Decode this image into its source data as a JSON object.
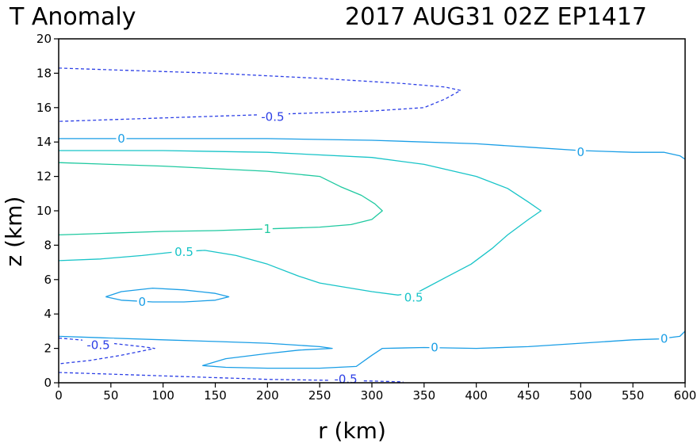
{
  "chart_data": {
    "type": "contour",
    "title_left": "T Anomaly",
    "title_right": "2017 AUG31 02Z   EP1417",
    "xlabel": "r (km)",
    "ylabel": "z (km)",
    "xlim": [
      0,
      600
    ],
    "ylim": [
      0,
      20
    ],
    "xticks": [
      0,
      50,
      100,
      150,
      200,
      250,
      300,
      350,
      400,
      450,
      500,
      550,
      600
    ],
    "yticks": [
      0,
      2,
      4,
      6,
      8,
      10,
      12,
      14,
      16,
      18,
      20
    ],
    "colors": {
      "neg": "#2c3fe6",
      "zero": "#1a9ee6",
      "half": "#18c4c8",
      "one": "#1fc9a0",
      "axis": "#000000"
    },
    "contours": [
      {
        "level": -0.5,
        "color": "neg",
        "dashed": true,
        "points": [
          [
            0,
            18.3
          ],
          [
            50,
            18.2
          ],
          [
            150,
            18.0
          ],
          [
            250,
            17.7
          ],
          [
            330,
            17.4
          ],
          [
            370,
            17.2
          ],
          [
            385,
            17.0
          ],
          [
            370,
            16.5
          ],
          [
            350,
            16.0
          ],
          [
            300,
            15.8
          ],
          [
            200,
            15.6
          ],
          [
            100,
            15.4
          ],
          [
            0,
            15.2
          ]
        ]
      },
      {
        "level": -0.5,
        "color": "neg",
        "dashed": true,
        "points": [
          [
            0,
            2.6
          ],
          [
            20,
            2.5
          ],
          [
            50,
            2.3
          ],
          [
            80,
            2.1
          ],
          [
            92,
            2.0
          ],
          [
            80,
            1.85
          ],
          [
            60,
            1.6
          ],
          [
            30,
            1.3
          ],
          [
            0,
            1.1
          ]
        ]
      },
      {
        "level": -0.5,
        "color": "neg",
        "dashed": true,
        "points": [
          [
            0,
            0.6
          ],
          [
            50,
            0.5
          ],
          [
            100,
            0.4
          ],
          [
            150,
            0.3
          ],
          [
            200,
            0.2
          ],
          [
            250,
            0.15
          ],
          [
            300,
            0.1
          ],
          [
            330,
            0.05
          ]
        ]
      },
      {
        "level": 0,
        "color": "zero",
        "dashed": false,
        "points": [
          [
            0,
            14.2
          ],
          [
            100,
            14.2
          ],
          [
            200,
            14.2
          ],
          [
            300,
            14.1
          ],
          [
            400,
            13.9
          ],
          [
            450,
            13.7
          ],
          [
            500,
            13.5
          ],
          [
            550,
            13.4
          ],
          [
            580,
            13.4
          ],
          [
            595,
            13.2
          ],
          [
            600,
            13.0
          ]
        ]
      },
      {
        "level": 0,
        "color": "zero",
        "dashed": false,
        "points": [
          [
            45,
            5.0
          ],
          [
            60,
            5.3
          ],
          [
            90,
            5.5
          ],
          [
            120,
            5.4
          ],
          [
            150,
            5.2
          ],
          [
            163,
            5.0
          ],
          [
            150,
            4.8
          ],
          [
            120,
            4.7
          ],
          [
            90,
            4.7
          ],
          [
            60,
            4.8
          ],
          [
            45,
            5.0
          ]
        ]
      },
      {
        "level": 0,
        "color": "zero",
        "dashed": false,
        "points": [
          [
            0,
            2.7
          ],
          [
            50,
            2.6
          ],
          [
            100,
            2.5
          ],
          [
            150,
            2.4
          ],
          [
            200,
            2.3
          ],
          [
            250,
            2.1
          ],
          [
            262,
            2.0
          ],
          [
            230,
            1.9
          ],
          [
            200,
            1.7
          ],
          [
            160,
            1.4
          ],
          [
            138,
            1.0
          ],
          [
            160,
            0.9
          ],
          [
            200,
            0.85
          ],
          [
            250,
            0.85
          ],
          [
            285,
            0.95
          ],
          [
            300,
            1.6
          ],
          [
            310,
            2.0
          ],
          [
            350,
            2.05
          ],
          [
            400,
            2.0
          ],
          [
            450,
            2.1
          ],
          [
            500,
            2.3
          ],
          [
            550,
            2.5
          ],
          [
            575,
            2.55
          ],
          [
            595,
            2.7
          ],
          [
            600,
            3.0
          ]
        ]
      },
      {
        "level": 0.5,
        "color": "half",
        "dashed": false,
        "points": [
          [
            0,
            13.5
          ],
          [
            100,
            13.5
          ],
          [
            200,
            13.4
          ],
          [
            300,
            13.1
          ],
          [
            350,
            12.7
          ],
          [
            400,
            12.0
          ],
          [
            430,
            11.3
          ],
          [
            450,
            10.5
          ],
          [
            462,
            10.0
          ],
          [
            450,
            9.5
          ],
          [
            430,
            8.6
          ],
          [
            415,
            7.8
          ],
          [
            395,
            6.9
          ],
          [
            370,
            6.1
          ],
          [
            345,
            5.3
          ],
          [
            325,
            5.1
          ],
          [
            300,
            5.3
          ],
          [
            270,
            5.6
          ],
          [
            250,
            5.8
          ],
          [
            230,
            6.2
          ],
          [
            200,
            6.9
          ],
          [
            170,
            7.4
          ],
          [
            140,
            7.7
          ],
          [
            110,
            7.6
          ],
          [
            80,
            7.4
          ],
          [
            40,
            7.2
          ],
          [
            0,
            7.1
          ]
        ]
      },
      {
        "level": 1,
        "color": "one",
        "dashed": false,
        "points": [
          [
            0,
            12.8
          ],
          [
            100,
            12.6
          ],
          [
            200,
            12.3
          ],
          [
            250,
            12.0
          ],
          [
            270,
            11.4
          ],
          [
            290,
            10.9
          ],
          [
            303,
            10.4
          ],
          [
            310,
            10.0
          ],
          [
            300,
            9.5
          ],
          [
            280,
            9.2
          ],
          [
            250,
            9.05
          ],
          [
            200,
            8.95
          ],
          [
            150,
            8.85
          ],
          [
            100,
            8.8
          ],
          [
            50,
            8.7
          ],
          [
            0,
            8.6
          ]
        ]
      }
    ],
    "contour_labels": [
      {
        "text": "-0.5",
        "x": 205,
        "y": 15.45,
        "color": "neg"
      },
      {
        "text": "-0.5",
        "x": 38,
        "y": 2.2,
        "color": "neg"
      },
      {
        "text": "-0.5",
        "x": 275,
        "y": 0.2,
        "color": "neg"
      },
      {
        "text": "0",
        "x": 60,
        "y": 14.2,
        "color": "zero"
      },
      {
        "text": "0",
        "x": 500,
        "y": 13.4,
        "color": "zero"
      },
      {
        "text": "0",
        "x": 80,
        "y": 4.7,
        "color": "zero"
      },
      {
        "text": "0",
        "x": 360,
        "y": 2.05,
        "color": "zero"
      },
      {
        "text": "0",
        "x": 580,
        "y": 2.55,
        "color": "zero"
      },
      {
        "text": "1",
        "x": 200,
        "y": 8.95,
        "color": "one"
      },
      {
        "text": "0.5",
        "x": 120,
        "y": 7.6,
        "color": "half"
      },
      {
        "text": "0.5",
        "x": 340,
        "y": 4.95,
        "color": "half"
      }
    ]
  }
}
